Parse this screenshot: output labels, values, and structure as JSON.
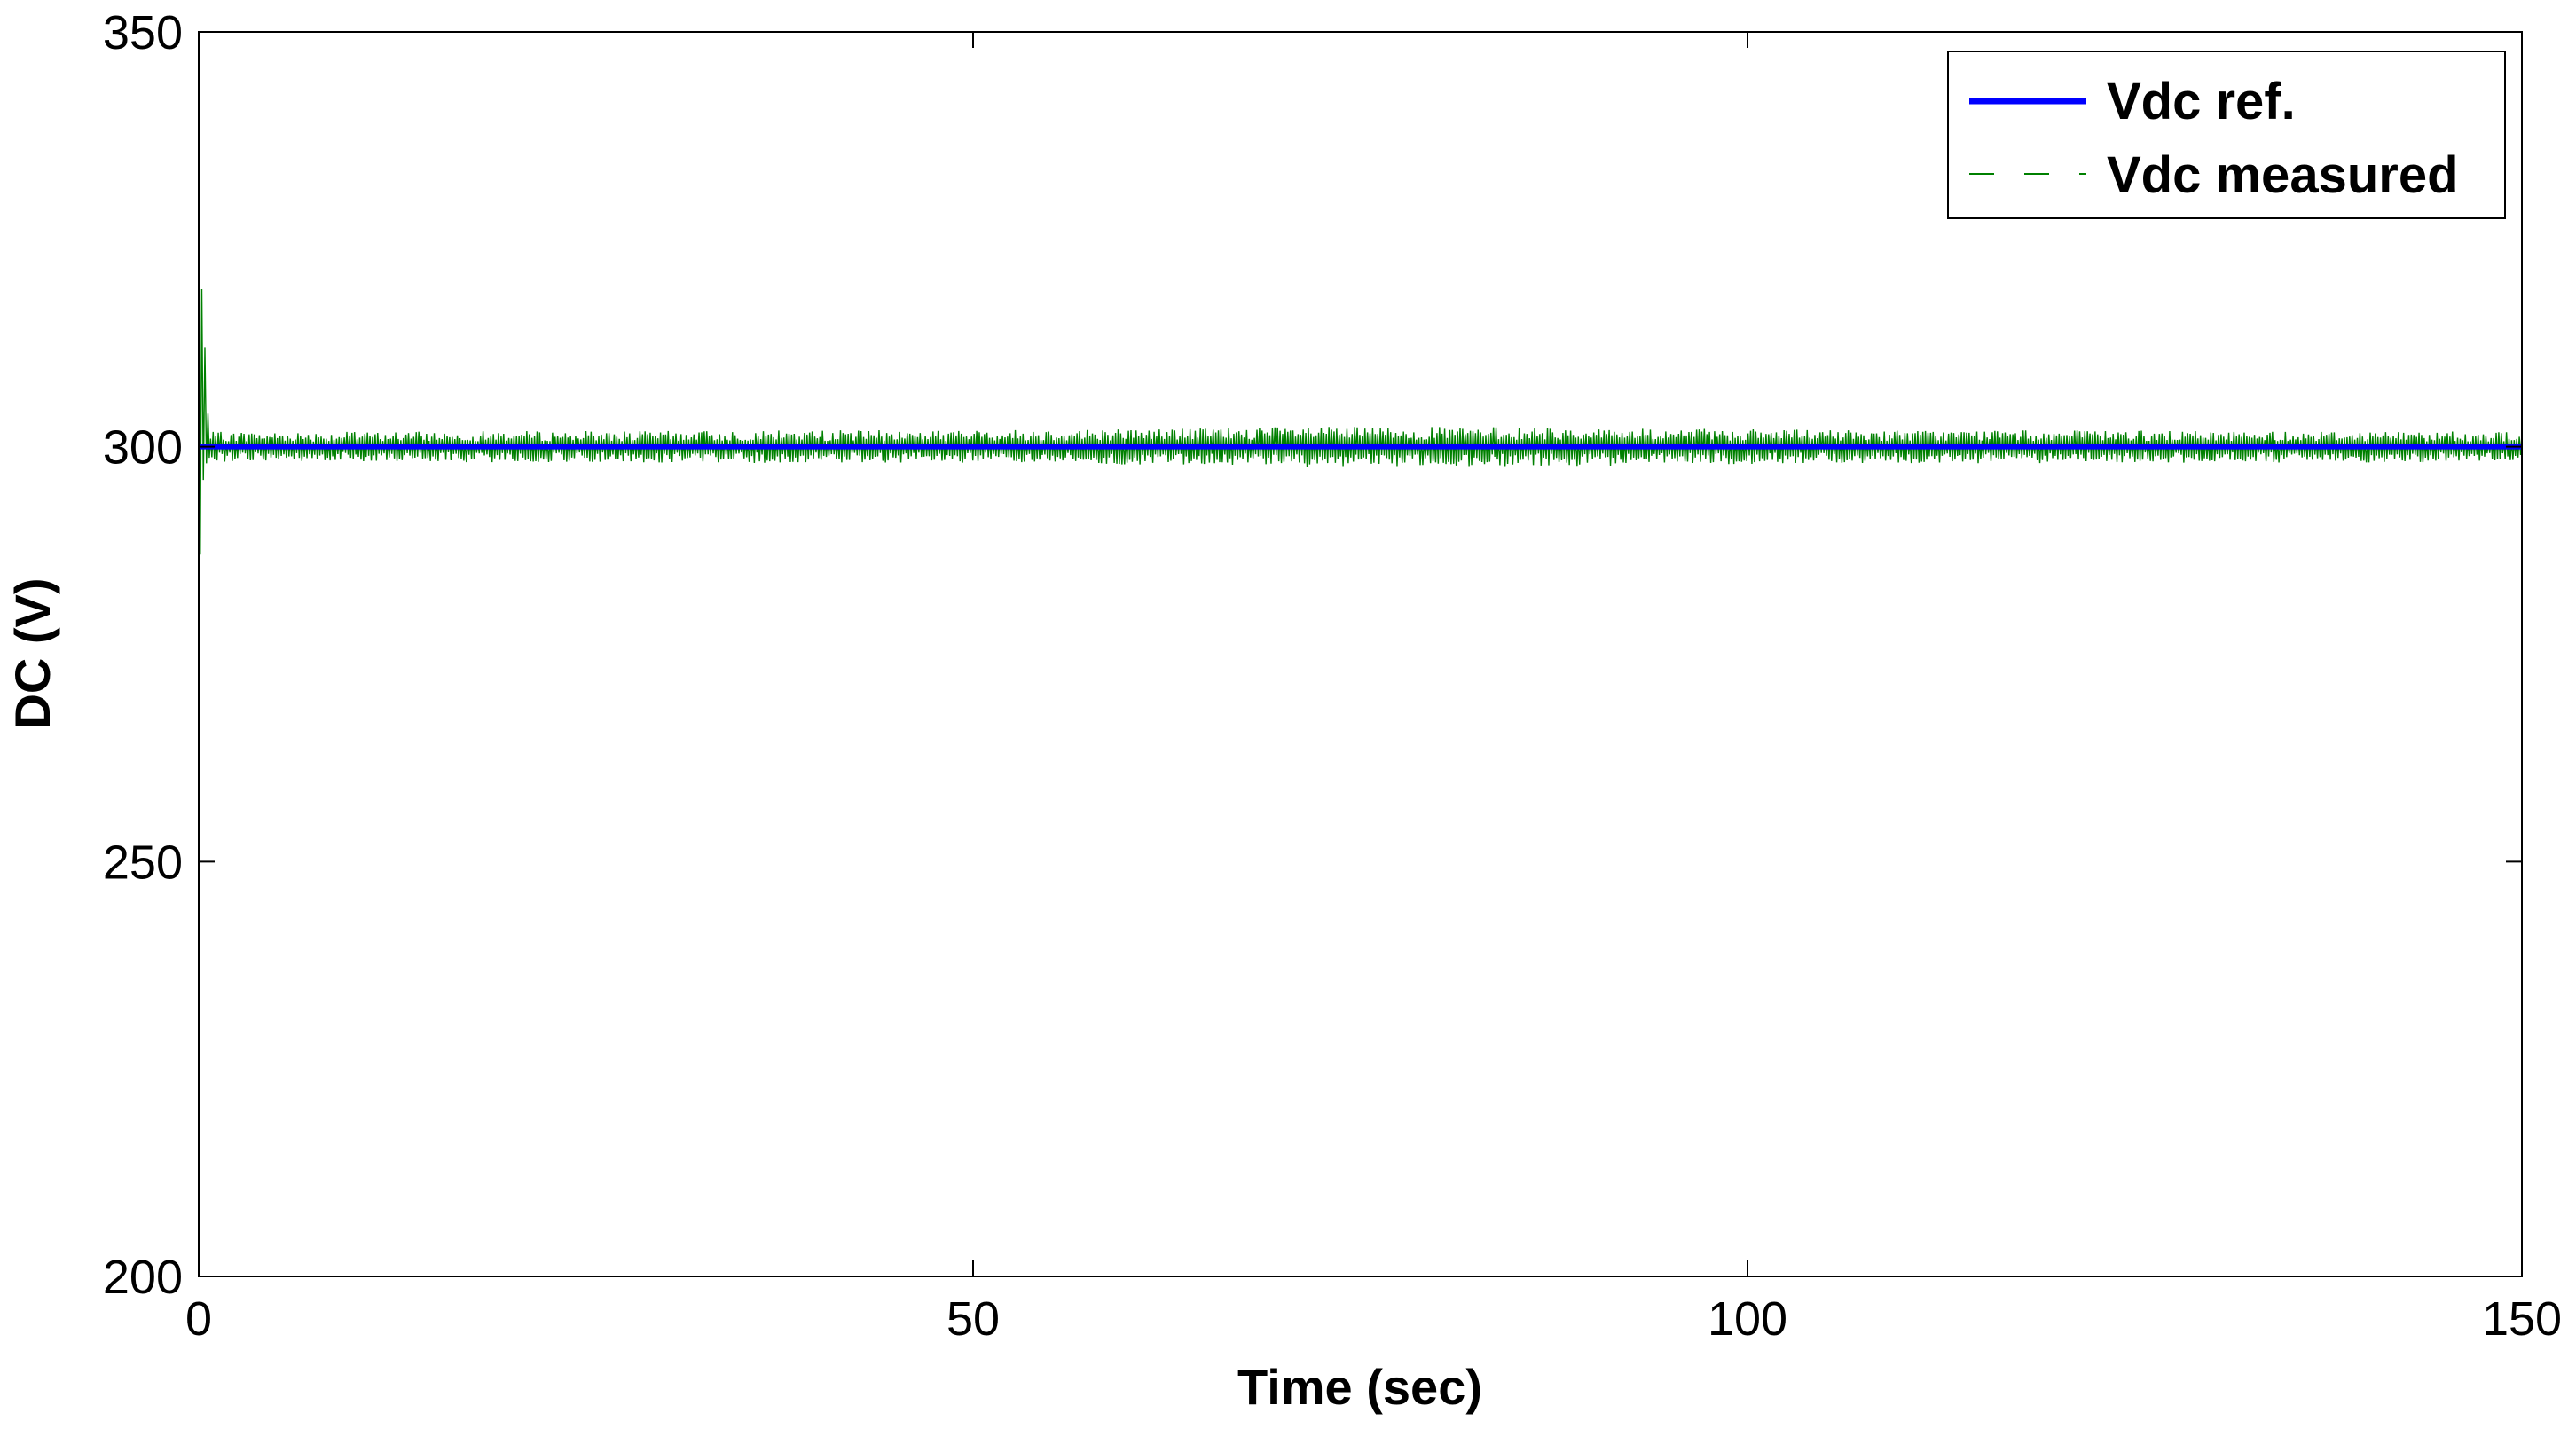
{
  "chart_data": {
    "type": "line",
    "xlabel": "Time (sec)",
    "ylabel": "DC (V)",
    "xlim": [
      0,
      150
    ],
    "ylim": [
      200,
      350
    ],
    "xticks": [
      0,
      50,
      100,
      150
    ],
    "yticks": [
      200,
      250,
      300,
      350
    ],
    "grid": false,
    "legend_position": "top-right",
    "series": [
      {
        "name": "Vdc ref.",
        "color": "#0000ff",
        "style": "solid",
        "x": [
          0,
          150
        ],
        "y": [
          300,
          300
        ]
      },
      {
        "name": "Vdc measured",
        "color": "#008000",
        "style": "dashed",
        "startup_transient": {
          "x": [
            0.0,
            0.1,
            0.2,
            0.3,
            0.4,
            0.5,
            0.6
          ],
          "y": [
            300,
            287,
            319,
            296,
            312,
            298,
            304
          ]
        },
        "steady_value": 300,
        "ripple_envelope": {
          "x": [
            0,
            10,
            20,
            30,
            40,
            50,
            60,
            70,
            80,
            90,
            100,
            110,
            120,
            130,
            140,
            150
          ],
          "amplitude": [
            1.8,
            1.8,
            1.9,
            1.9,
            2.0,
            2.0,
            2.2,
            2.4,
            2.4,
            2.3,
            2.1,
            2.0,
            2.0,
            1.9,
            1.9,
            1.8
          ]
        }
      }
    ]
  }
}
